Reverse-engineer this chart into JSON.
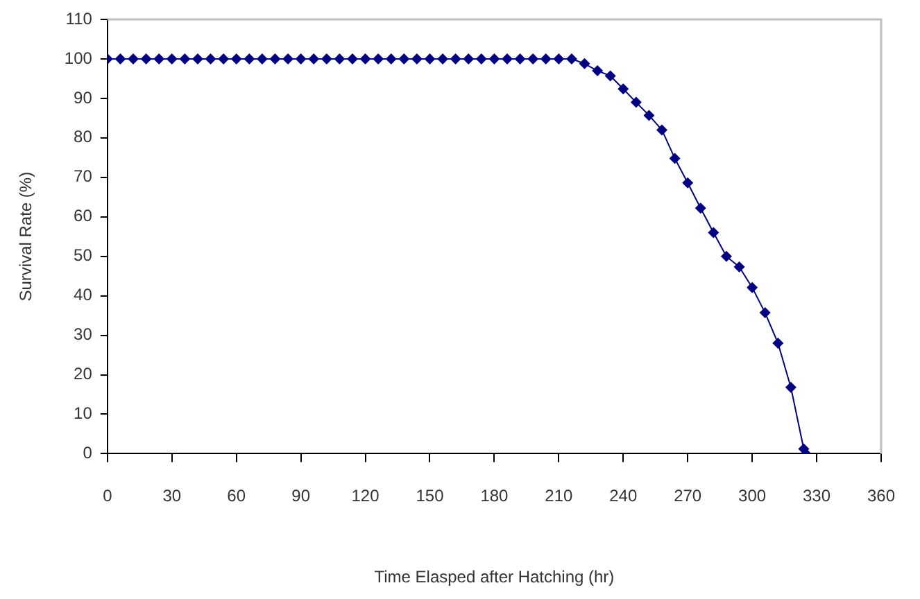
{
  "chart_data": {
    "type": "line",
    "xlabel": "Time Elasped after Hatching (hr)",
    "ylabel": "Survival Rate (%)",
    "x": [
      0,
      6,
      12,
      18,
      24,
      30,
      36,
      42,
      48,
      54,
      60,
      66,
      72,
      78,
      84,
      90,
      96,
      102,
      108,
      114,
      120,
      126,
      132,
      138,
      144,
      150,
      156,
      162,
      168,
      174,
      180,
      186,
      192,
      198,
      204,
      210,
      216,
      222,
      228,
      234,
      240,
      246,
      252,
      258,
      264,
      270,
      276,
      282,
      288,
      294,
      300,
      306,
      312,
      318,
      324,
      325
    ],
    "series": [
      {
        "color": "#000080",
        "values": [
          100,
          100,
          100,
          100,
          100,
          100,
          100,
          100,
          100,
          100,
          100,
          100,
          100,
          100,
          100,
          100,
          100,
          100,
          100,
          100,
          100,
          100,
          100,
          100,
          100,
          100,
          100,
          100,
          100,
          100,
          100,
          100,
          100,
          100,
          100,
          100,
          100,
          98.8,
          97,
          95.7,
          92.4,
          89,
          85.7,
          82,
          74.8,
          68.6,
          62.2,
          56,
          50,
          47.3,
          42.1,
          35.7,
          28,
          16.8,
          1.2,
          0
        ]
      }
    ],
    "xlim": [
      0,
      360
    ],
    "xticks": [
      0,
      30,
      60,
      90,
      120,
      150,
      180,
      210,
      240,
      270,
      300,
      330,
      360
    ],
    "ylim": [
      0,
      110
    ],
    "yticks": [
      0,
      10,
      20,
      30,
      40,
      50,
      60,
      70,
      80,
      90,
      100,
      110
    ],
    "grid": false,
    "legend": false,
    "marker": "diamond",
    "line_style": "solid"
  }
}
